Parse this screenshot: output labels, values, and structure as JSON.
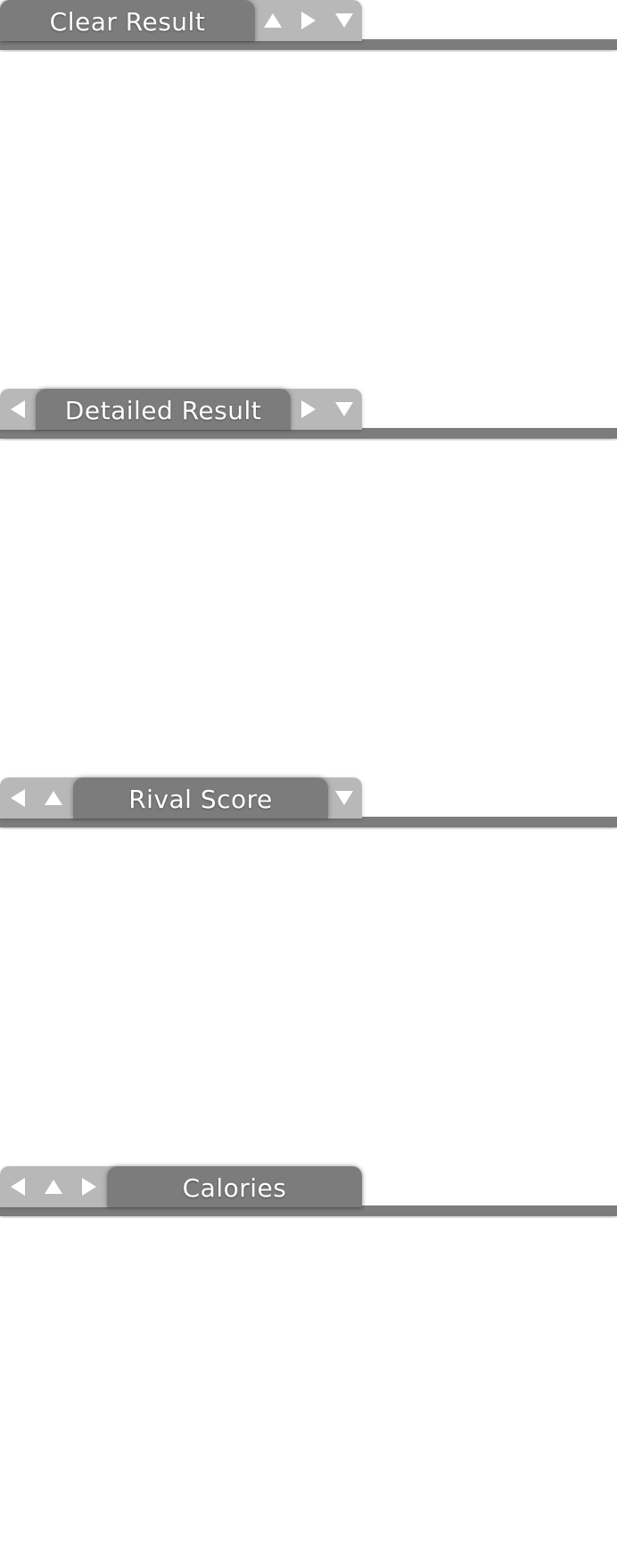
{
  "colors": {
    "tab_active": "#7c7c7c",
    "tab_inactive": "#b8b8b8",
    "arrow": "#ffffff",
    "background": "#ffffff"
  },
  "sections": [
    {
      "title": "Clear Result",
      "arrows": [
        "up",
        "right",
        "down"
      ]
    },
    {
      "title": "Detailed Result",
      "arrows": [
        "left",
        "right",
        "down"
      ]
    },
    {
      "title": "Rival Score",
      "arrows": [
        "left",
        "up",
        "down"
      ]
    },
    {
      "title": "Calories",
      "arrows": [
        "left",
        "up",
        "right"
      ]
    }
  ]
}
